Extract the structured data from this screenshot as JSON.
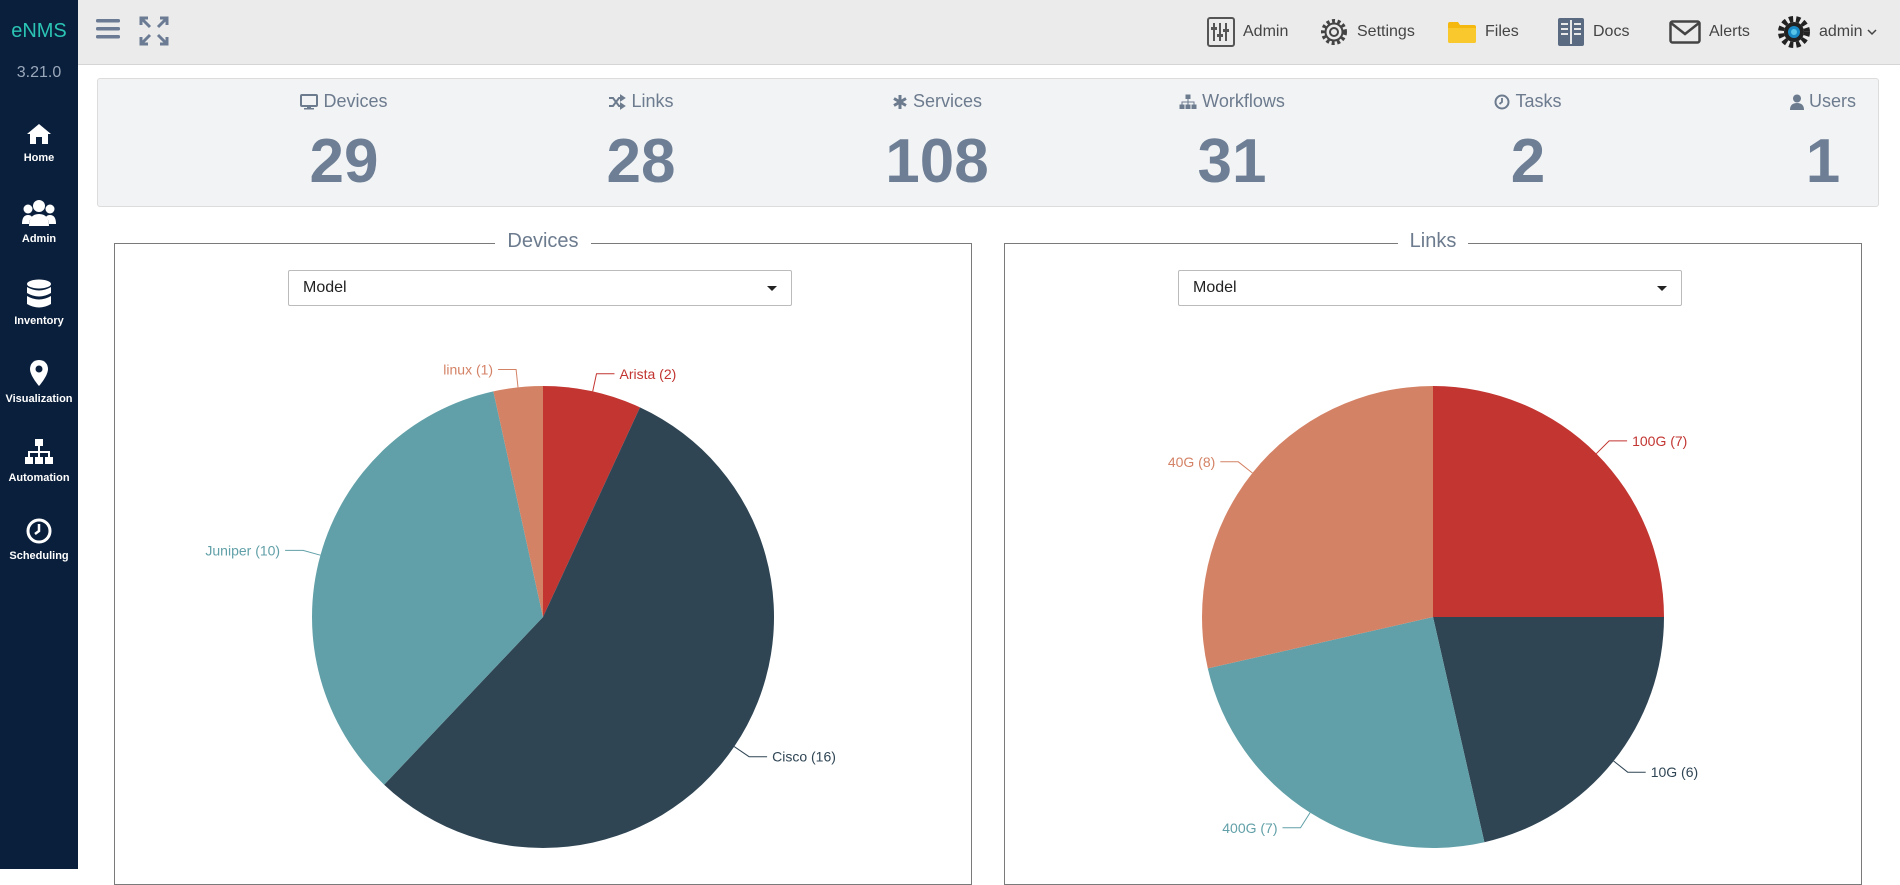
{
  "app": {
    "brand": "eNMS",
    "version": "3.21.0"
  },
  "sidebar": {
    "items": [
      {
        "label": "Home",
        "icon": "home-icon"
      },
      {
        "label": "Admin",
        "icon": "users-icon"
      },
      {
        "label": "Inventory",
        "icon": "database-icon"
      },
      {
        "label": "Visualization",
        "icon": "map-marker-icon"
      },
      {
        "label": "Automation",
        "icon": "sitemap-icon"
      },
      {
        "label": "Scheduling",
        "icon": "clock-icon"
      }
    ]
  },
  "topbar": {
    "admin_label": "Admin",
    "settings_label": "Settings",
    "files_label": "Files",
    "docs_label": "Docs",
    "alerts_label": "Alerts",
    "user_label": "admin"
  },
  "stats": [
    {
      "label": "Devices",
      "value": "29",
      "icon": "desktop-icon"
    },
    {
      "label": "Links",
      "value": "28",
      "icon": "random-icon"
    },
    {
      "label": "Services",
      "value": "108",
      "icon": "asterisk-icon"
    },
    {
      "label": "Workflows",
      "value": "31",
      "icon": "sitemap-icon"
    },
    {
      "label": "Tasks",
      "value": "2",
      "icon": "clock-icon"
    },
    {
      "label": "Users",
      "value": "1",
      "icon": "user-icon"
    }
  ],
  "panels": {
    "devices": {
      "title": "Devices",
      "select_value": "Model"
    },
    "links": {
      "title": "Links",
      "select_value": "Model"
    }
  },
  "colors": {
    "sidebar": "#0a1f3c",
    "slice_red": "#c23531",
    "slice_dark": "#2f4554",
    "slice_teal": "#61a0a8",
    "slice_salmon": "#d48265"
  },
  "chart_data": [
    {
      "type": "pie",
      "title": "Devices",
      "categories": [
        "Arista",
        "Cisco",
        "Juniper",
        "linux"
      ],
      "values": [
        2,
        16,
        10,
        1
      ],
      "labels": [
        "Arista (2)",
        "Cisco (16)",
        "Juniper (10)",
        "linux (1)"
      ],
      "colors": [
        "#c23531",
        "#2f4554",
        "#61a0a8",
        "#d48265"
      ]
    },
    {
      "type": "pie",
      "title": "Links",
      "categories": [
        "100G",
        "10G",
        "400G",
        "40G"
      ],
      "values": [
        7,
        6,
        7,
        8
      ],
      "labels": [
        "100G (7)",
        "10G (6)",
        "400G (7)",
        "40G (8)"
      ],
      "colors": [
        "#c23531",
        "#2f4554",
        "#61a0a8",
        "#d48265"
      ]
    }
  ]
}
